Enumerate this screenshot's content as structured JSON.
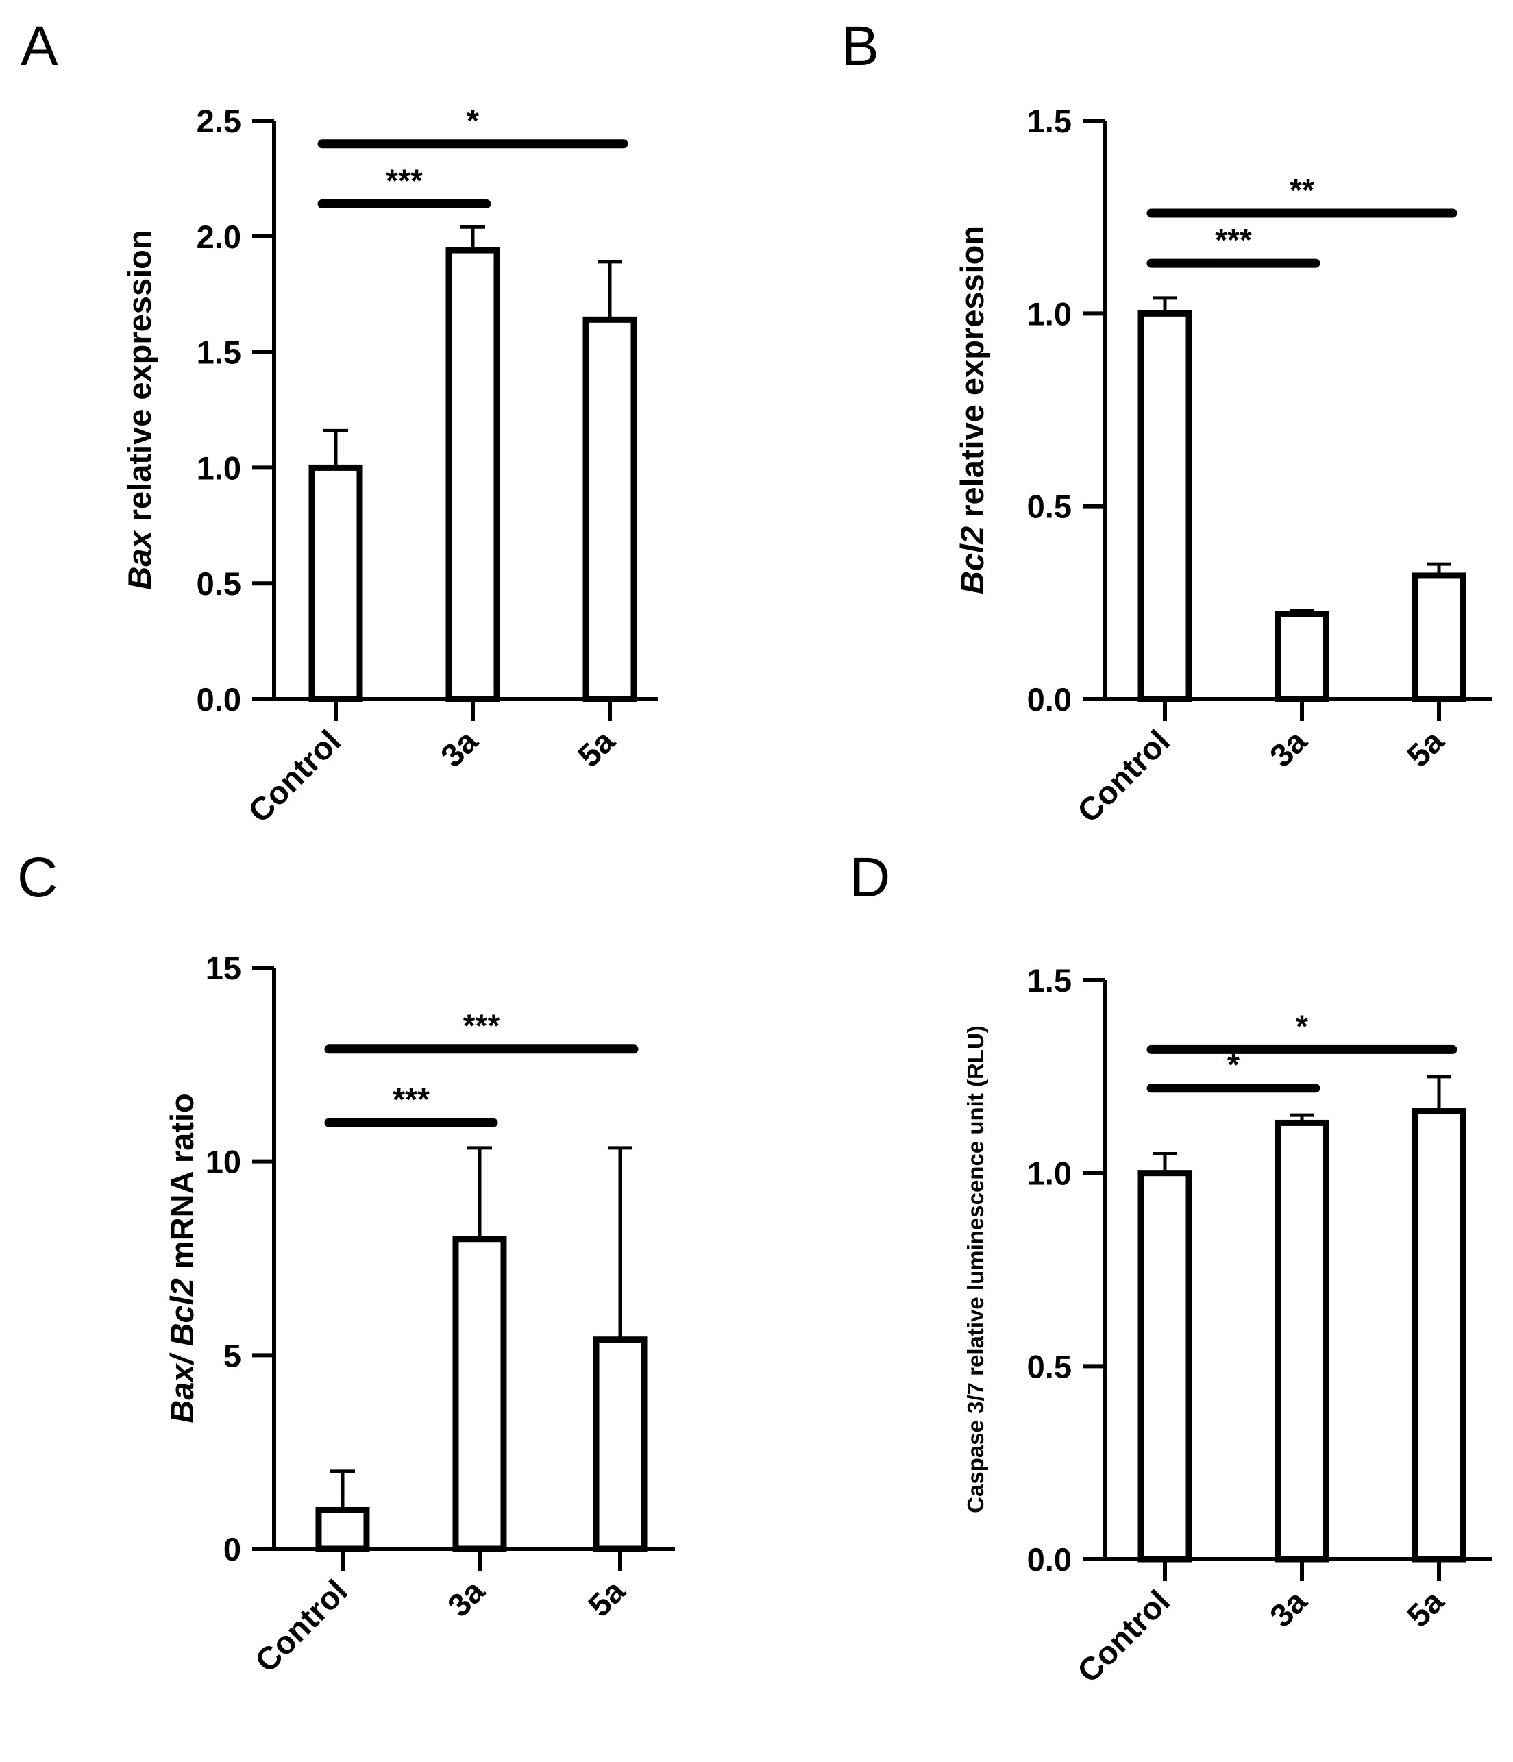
{
  "chart_data": [
    {
      "type": "bar",
      "panel": "A",
      "categories": [
        "Control",
        "3a",
        "5a"
      ],
      "values": [
        1.0,
        1.94,
        1.64
      ],
      "errors": [
        0.16,
        0.1,
        0.25
      ],
      "ylim": [
        0,
        2.5
      ],
      "yticks": [
        "0.0",
        "0.5",
        "1.0",
        "1.5",
        "2.0",
        "2.5"
      ],
      "ylabel": {
        "gene": "Bax",
        "text": " relative expression"
      },
      "significance": [
        {
          "from": 0,
          "to": 1,
          "y": 2.14,
          "label": "***"
        },
        {
          "from": 0,
          "to": 2,
          "y": 2.4,
          "label": "*"
        }
      ]
    },
    {
      "type": "bar",
      "panel": "B",
      "categories": [
        "Control",
        "3a",
        "5a"
      ],
      "values": [
        1.0,
        0.22,
        0.32
      ],
      "errors": [
        0.04,
        0.01,
        0.03
      ],
      "ylim": [
        0,
        1.5
      ],
      "yticks": [
        "0.0",
        "0.5",
        "1.0",
        "1.5"
      ],
      "ylabel": {
        "gene": "Bcl2",
        "text": " relative expression"
      },
      "significance": [
        {
          "from": 0,
          "to": 1,
          "y": 1.13,
          "label": "***"
        },
        {
          "from": 0,
          "to": 2,
          "y": 1.26,
          "label": "**"
        }
      ]
    },
    {
      "type": "bar",
      "panel": "C",
      "categories": [
        "Control",
        "3a",
        "5a"
      ],
      "values": [
        1.0,
        8.0,
        5.4
      ],
      "errors": [
        1.0,
        2.35,
        4.95
      ],
      "ylim": [
        0,
        15
      ],
      "yticks": [
        "0",
        "5",
        "10",
        "15"
      ],
      "ylabel": {
        "gene": "Bax/ Bcl2",
        "text": " mRNA ratio"
      },
      "significance": [
        {
          "from": 0,
          "to": 1,
          "y": 11.0,
          "label": "***"
        },
        {
          "from": 0,
          "to": 2,
          "y": 12.9,
          "label": "***"
        }
      ]
    },
    {
      "type": "bar",
      "panel": "D",
      "categories": [
        "Control",
        "3a",
        "5a"
      ],
      "values": [
        1.0,
        1.13,
        1.16
      ],
      "errors": [
        0.05,
        0.02,
        0.09
      ],
      "ylim": [
        0,
        1.5
      ],
      "yticks": [
        "0.0",
        "0.5",
        "1.0",
        "1.5"
      ],
      "ylabel": {
        "gene": "",
        "text": "Caspase 3/7 relative luminescence unit (RLU)"
      },
      "significance": [
        {
          "from": 0,
          "to": 1,
          "y": 1.22,
          "label": "*"
        },
        {
          "from": 0,
          "to": 2,
          "y": 1.32,
          "label": "*"
        }
      ]
    }
  ]
}
